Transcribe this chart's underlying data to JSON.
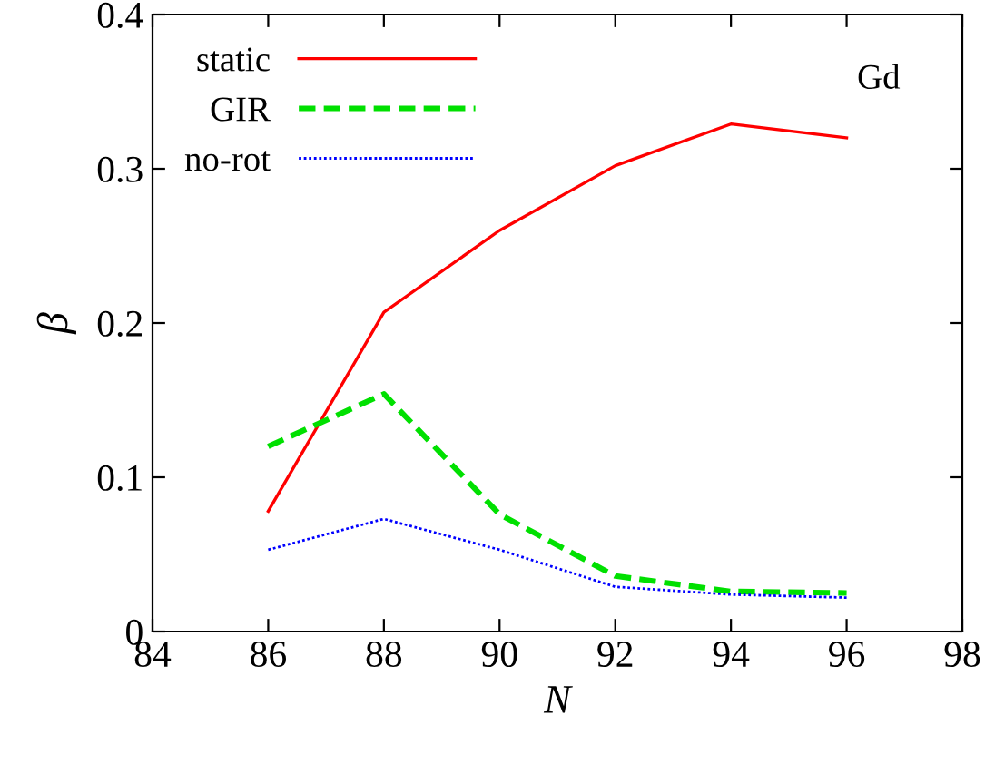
{
  "chart_data": {
    "type": "line",
    "xlabel": "N",
    "ylabel": "β",
    "x": [
      86,
      88,
      90,
      92,
      94,
      96
    ],
    "series": [
      {
        "name": "static",
        "color": "#ff0000",
        "line_style": "solid",
        "values": [
          0.078,
          0.207,
          0.26,
          0.302,
          0.329,
          0.32
        ]
      },
      {
        "name": "GIR",
        "color": "#00e000",
        "line_style": "dashed",
        "values": [
          0.12,
          0.154,
          0.076,
          0.036,
          0.026,
          0.025
        ]
      },
      {
        "name": "no-rot",
        "color": "#0000ff",
        "line_style": "dotted",
        "values": [
          0.053,
          0.073,
          0.053,
          0.029,
          0.024,
          0.022
        ]
      }
    ],
    "xlim": [
      84,
      98
    ],
    "xticks": [
      84,
      86,
      88,
      90,
      92,
      94,
      96,
      98
    ],
    "ylim": [
      0,
      0.4
    ],
    "yticks": [
      0,
      0.1,
      0.2,
      0.3,
      0.4
    ],
    "grid": false,
    "legend": "top left",
    "marker": "none",
    "annotations": [
      "Gd"
    ]
  }
}
